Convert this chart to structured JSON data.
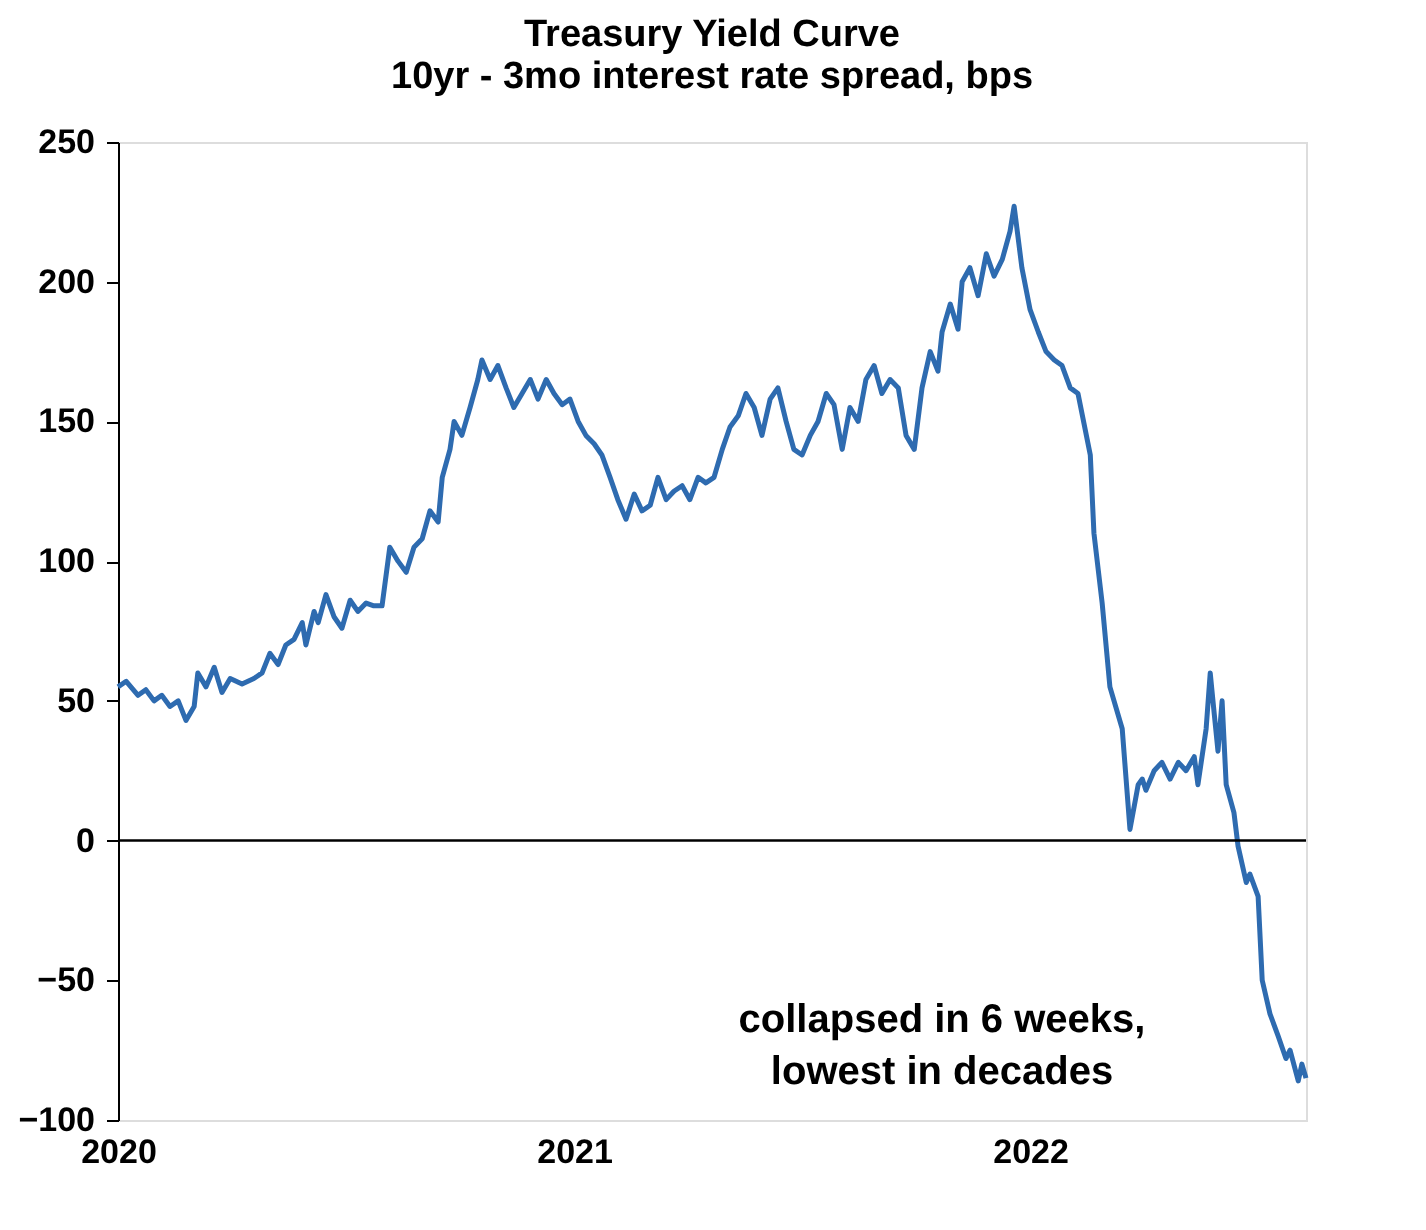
{
  "chart_data": {
    "type": "line",
    "title": "Treasury Yield Curve",
    "subtitle": "10yr - 3mo interest rate spread, bps",
    "x": [
      2020,
      2020.018,
      2020.044,
      2020.061,
      2020.079,
      2020.096,
      2020.114,
      2020.132,
      2020.149,
      2020.167,
      2020.175,
      2020.193,
      2020.211,
      2020.228,
      2020.246,
      2020.272,
      2020.298,
      2020.316,
      2020.333,
      2020.351,
      2020.368,
      2020.386,
      2020.404,
      2020.412,
      2020.43,
      2020.439,
      2020.456,
      2020.474,
      2020.491,
      2020.509,
      2020.526,
      2020.544,
      2020.561,
      2020.579,
      2020.596,
      2020.614,
      2020.632,
      2020.649,
      2020.667,
      2020.684,
      2020.702,
      2020.711,
      2020.728,
      2020.737,
      2020.754,
      2020.772,
      2020.789,
      2020.798,
      2020.816,
      2020.833,
      2020.851,
      2020.868,
      2020.886,
      2020.904,
      2020.921,
      2020.939,
      2020.956,
      2020.974,
      2020.991,
      2021.009,
      2021.026,
      2021.044,
      2021.061,
      2021.079,
      2021.096,
      2021.114,
      2021.132,
      2021.149,
      2021.167,
      2021.184,
      2021.202,
      2021.219,
      2021.237,
      2021.254,
      2021.272,
      2021.289,
      2021.307,
      2021.325,
      2021.342,
      2021.36,
      2021.377,
      2021.395,
      2021.412,
      2021.43,
      2021.447,
      2021.465,
      2021.482,
      2021.5,
      2021.518,
      2021.535,
      2021.553,
      2021.57,
      2021.588,
      2021.605,
      2021.623,
      2021.64,
      2021.658,
      2021.675,
      2021.693,
      2021.711,
      2021.728,
      2021.746,
      2021.763,
      2021.781,
      2021.798,
      2021.807,
      2021.825,
      2021.842,
      2021.851,
      2021.868,
      2021.886,
      2021.904,
      2021.921,
      2021.939,
      2021.956,
      2021.965,
      2021.982,
      2022,
      2022.018,
      2022.035,
      2022.053,
      2022.07,
      2022.088,
      2022.105,
      2022.132,
      2022.14,
      2022.158,
      2022.175,
      2022.202,
      2022.219,
      2022.237,
      2022.246,
      2022.254,
      2022.272,
      2022.289,
      2022.307,
      2022.325,
      2022.342,
      2022.36,
      2022.368,
      2022.386,
      2022.395,
      2022.404,
      2022.412,
      2022.421,
      2022.43,
      2022.447,
      2022.456,
      2022.474,
      2022.482,
      2022.5,
      2022.509,
      2022.526,
      2022.544,
      2022.561,
      2022.57,
      2022.588,
      2022.596,
      2022.605
    ],
    "series": [
      {
        "color": "#2e6bb0",
        "values": [
          55,
          57,
          52,
          54,
          50,
          52,
          48,
          50,
          43,
          48,
          60,
          55,
          62,
          53,
          58,
          56,
          58,
          60,
          67,
          63,
          70,
          72,
          78,
          70,
          82,
          78,
          88,
          80,
          76,
          86,
          82,
          85,
          84,
          84,
          105,
          100,
          96,
          105,
          108,
          118,
          114,
          130,
          140,
          150,
          145,
          155,
          165,
          172,
          165,
          170,
          162,
          155,
          160,
          165,
          158,
          165,
          160,
          156,
          158,
          150,
          145,
          142,
          138,
          130,
          122,
          115,
          124,
          118,
          120,
          130,
          122,
          125,
          127,
          122,
          130,
          128,
          130,
          140,
          148,
          152,
          160,
          155,
          145,
          158,
          162,
          150,
          140,
          138,
          145,
          150,
          160,
          156,
          140,
          155,
          150,
          165,
          170,
          160,
          165,
          162,
          145,
          140,
          162,
          175,
          168,
          182,
          192,
          183,
          200,
          205,
          195,
          210,
          202,
          208,
          218,
          227,
          205,
          190,
          182,
          175,
          172,
          170,
          162,
          160,
          138,
          110,
          85,
          55,
          40,
          4,
          20,
          22,
          18,
          25,
          28,
          22,
          28,
          25,
          30,
          20,
          40,
          60,
          45,
          32,
          50,
          20,
          10,
          -2,
          -15,
          -12,
          -20,
          -50,
          -62,
          -70,
          -78,
          -75,
          -86,
          -80,
          -85
        ]
      }
    ],
    "xlim": [
      2020,
      2022.605
    ],
    "xticks": [
      2020,
      2021,
      2022
    ],
    "ylim": [
      -100,
      250
    ],
    "yticks": [
      -100,
      -50,
      0,
      50,
      100,
      150,
      200,
      250
    ],
    "ref_lines": [
      {
        "axis": "y",
        "value": 0,
        "color": "#000000"
      }
    ],
    "annotations": [
      "collapsed in 6 weeks,",
      "lowest in decades"
    ],
    "grid": false,
    "line_style": "solid"
  }
}
